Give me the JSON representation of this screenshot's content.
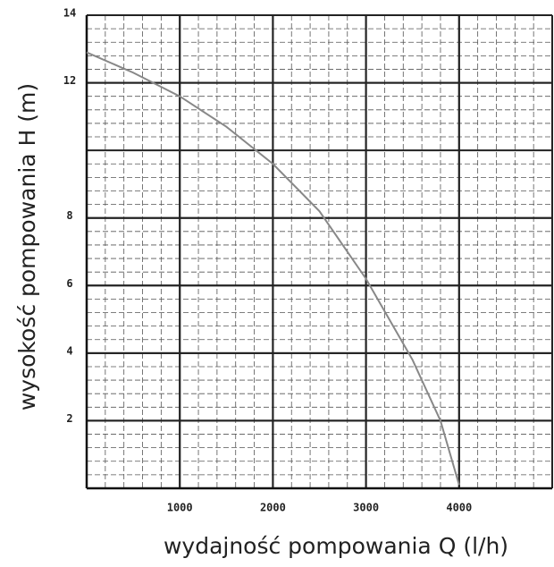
{
  "chart_data": {
    "type": "line",
    "x_label": "wydajność pompowania Q (l/h)",
    "y_label": "wysokość pompowania  H (m)",
    "x": [
      0,
      500,
      1000,
      1500,
      2000,
      2500,
      3000,
      3500,
      3800,
      4000
    ],
    "series": [
      {
        "color": "#888888",
        "values": [
          12.9,
          12.3,
          11.6,
          10.7,
          9.6,
          8.2,
          6.2,
          3.8,
          2.0,
          0.1
        ]
      }
    ],
    "xlim": [
      0,
      5000
    ],
    "ylim": [
      0,
      14
    ],
    "xticks": [
      1000,
      2000,
      3000,
      4000
    ],
    "yticks": [
      2,
      4,
      6,
      8,
      12,
      14
    ],
    "grid": true
  }
}
